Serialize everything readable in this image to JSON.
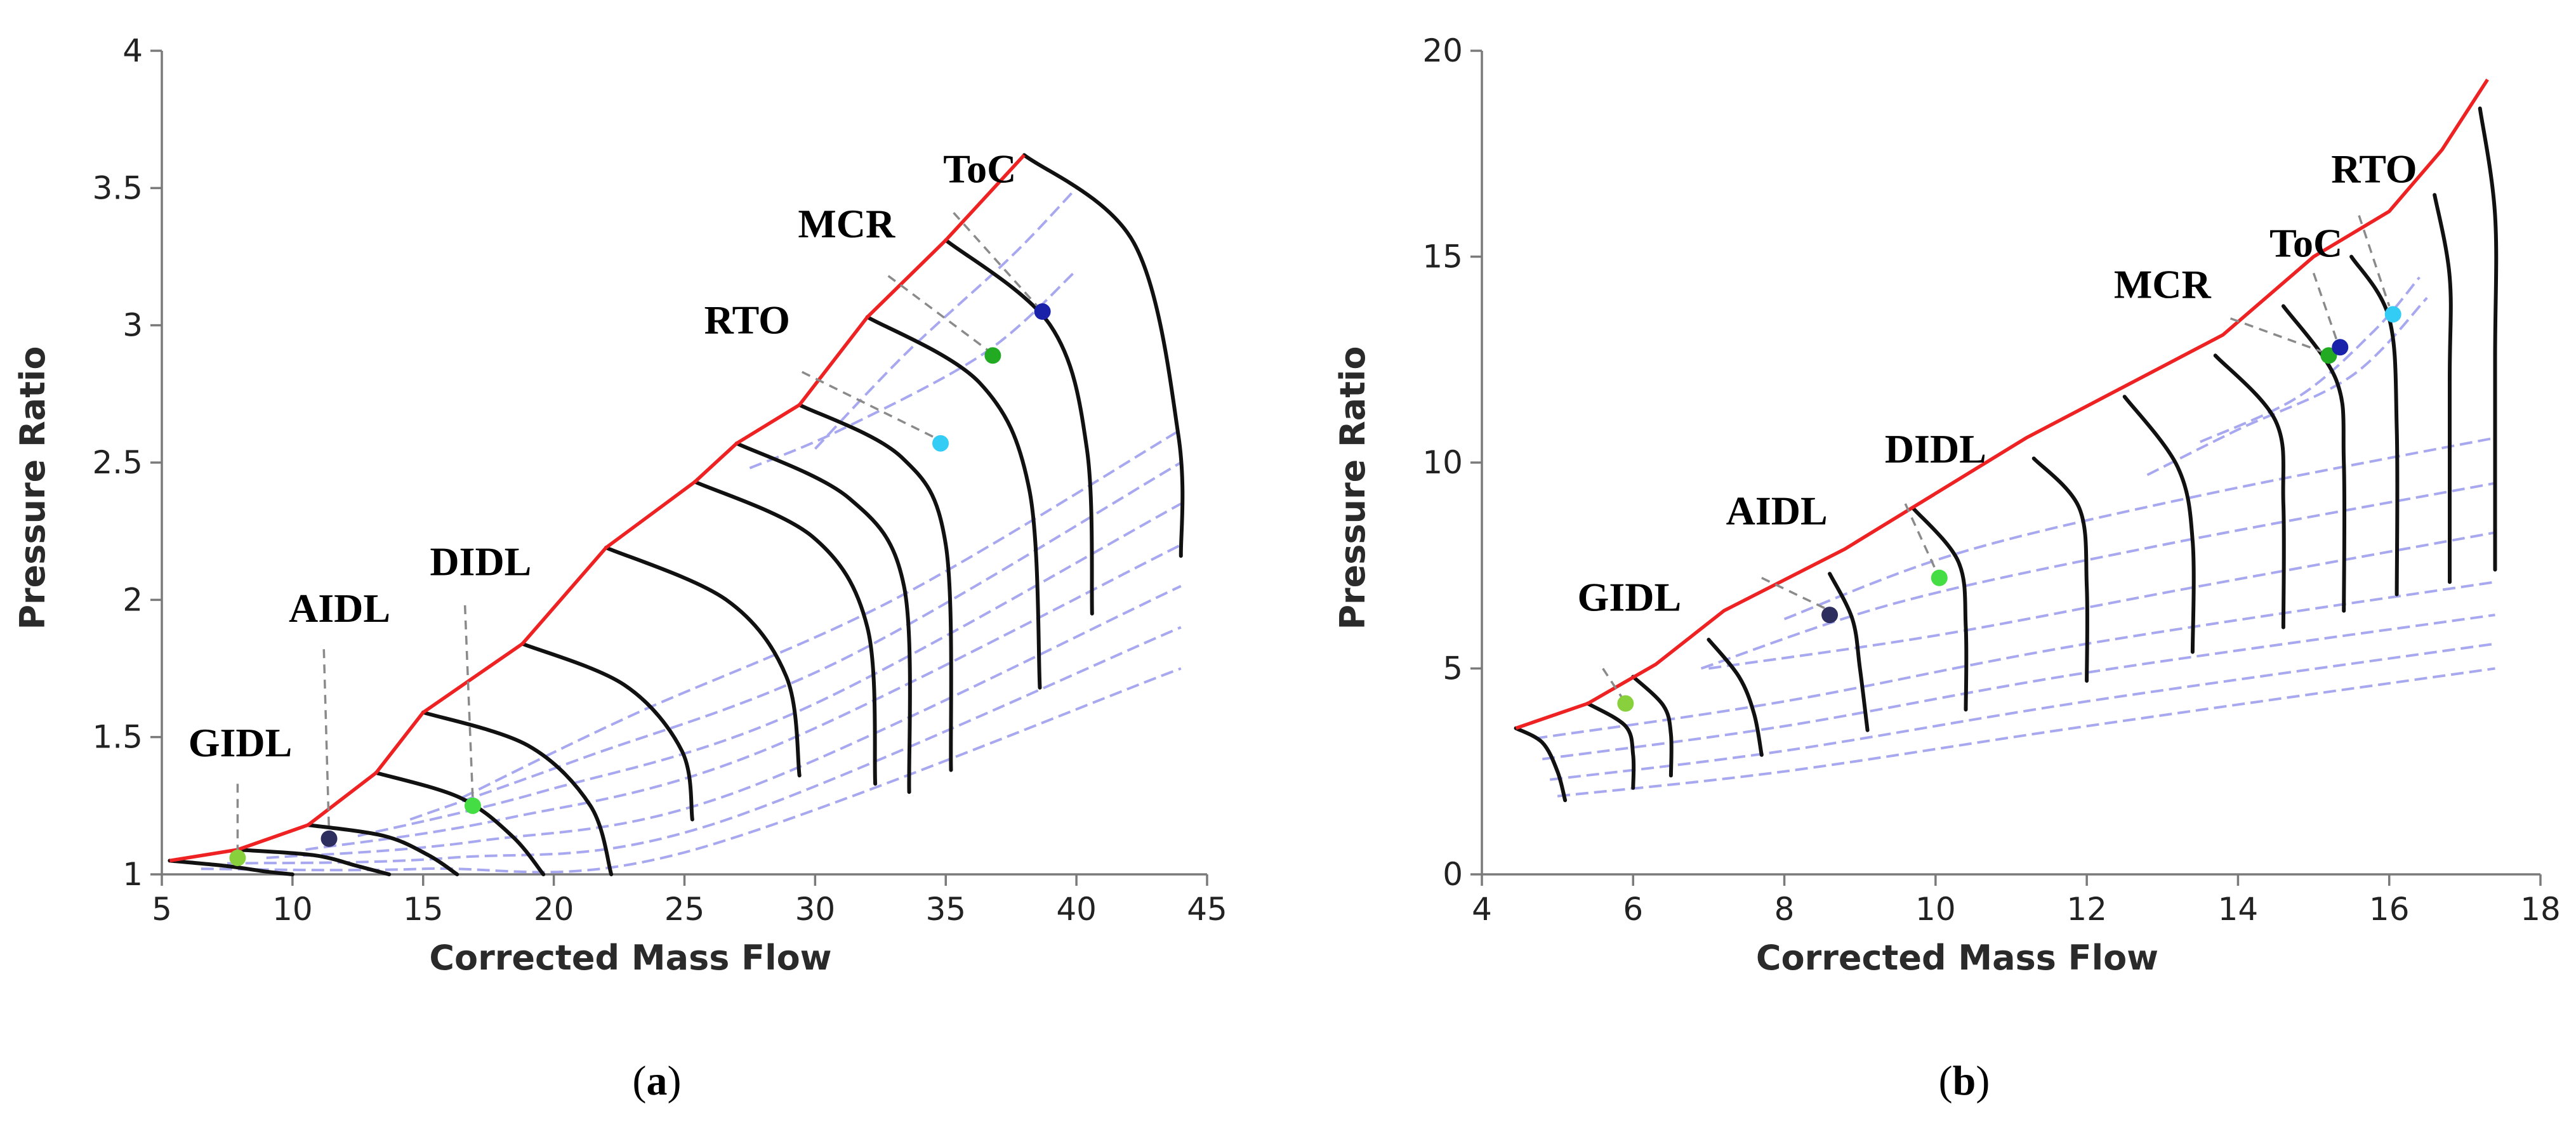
{
  "chart_data": [
    {
      "type": "line",
      "panel": "a",
      "caption_letter": "a",
      "xlabel": "Corrected Mass Flow",
      "ylabel": "Pressure Ratio",
      "xlim": [
        5,
        45
      ],
      "ylim": [
        1,
        4
      ],
      "xticks": [
        "5",
        "10",
        "15",
        "20",
        "25",
        "30",
        "35",
        "40",
        "45"
      ],
      "yticks": [
        "1",
        "1.5",
        "2",
        "2.5",
        "3",
        "3.5",
        "4"
      ],
      "surge_line": [
        [
          5.3,
          1.05
        ],
        [
          7.9,
          1.09
        ],
        [
          10.6,
          1.18
        ],
        [
          13.2,
          1.37
        ],
        [
          15.0,
          1.59
        ],
        [
          18.8,
          1.84
        ],
        [
          22.0,
          2.19
        ],
        [
          25.4,
          2.43
        ],
        [
          27.0,
          2.57
        ],
        [
          29.4,
          2.71
        ],
        [
          32.0,
          3.03
        ],
        [
          35.0,
          3.31
        ],
        [
          38.0,
          3.62
        ]
      ],
      "speed_lines": [
        [
          [
            5.3,
            1.05
          ],
          [
            7.5,
            1.03
          ],
          [
            9.0,
            1.01
          ],
          [
            10.0,
            1.0
          ]
        ],
        [
          [
            7.9,
            1.09
          ],
          [
            10.8,
            1.07
          ],
          [
            12.5,
            1.03
          ],
          [
            13.7,
            1.0
          ]
        ],
        [
          [
            10.6,
            1.18
          ],
          [
            13.5,
            1.14
          ],
          [
            15.2,
            1.07
          ],
          [
            16.3,
            1.0
          ]
        ],
        [
          [
            13.2,
            1.37
          ],
          [
            16.4,
            1.28
          ],
          [
            18.4,
            1.14
          ],
          [
            19.6,
            1.0
          ]
        ],
        [
          [
            15.0,
            1.59
          ],
          [
            19.0,
            1.47
          ],
          [
            21.4,
            1.25
          ],
          [
            22.2,
            1.0
          ]
        ],
        [
          [
            18.8,
            1.84
          ],
          [
            22.7,
            1.69
          ],
          [
            24.9,
            1.45
          ],
          [
            25.3,
            1.2
          ]
        ],
        [
          [
            22.0,
            2.19
          ],
          [
            26.6,
            2.0
          ],
          [
            28.9,
            1.72
          ],
          [
            29.4,
            1.36
          ]
        ],
        [
          [
            25.4,
            2.43
          ],
          [
            29.9,
            2.23
          ],
          [
            32.0,
            1.9
          ],
          [
            32.3,
            1.33
          ]
        ],
        [
          [
            27.0,
            2.57
          ],
          [
            31.3,
            2.37
          ],
          [
            33.4,
            2.05
          ],
          [
            33.6,
            1.3
          ]
        ],
        [
          [
            29.4,
            2.71
          ],
          [
            33.3,
            2.52
          ],
          [
            35.0,
            2.2
          ],
          [
            35.2,
            1.38
          ]
        ],
        [
          [
            32.0,
            3.03
          ],
          [
            36.3,
            2.79
          ],
          [
            38.2,
            2.4
          ],
          [
            38.6,
            1.68
          ]
        ],
        [
          [
            35.0,
            3.31
          ],
          [
            39.0,
            3.0
          ],
          [
            40.4,
            2.55
          ],
          [
            40.6,
            1.95
          ]
        ],
        [
          [
            38.0,
            3.62
          ],
          [
            42.2,
            3.3
          ],
          [
            43.9,
            2.6
          ],
          [
            44.0,
            2.16
          ]
        ]
      ],
      "efficiency_contours": [
        [
          [
            6.5,
            1.02
          ],
          [
            15.0,
            1.02
          ],
          [
            25.0,
            1.08
          ],
          [
            44.0,
            1.75
          ]
        ],
        [
          [
            7.5,
            1.04
          ],
          [
            16.0,
            1.06
          ],
          [
            26.0,
            1.18
          ],
          [
            44.0,
            1.9
          ]
        ],
        [
          [
            9.0,
            1.06
          ],
          [
            17.0,
            1.12
          ],
          [
            27.0,
            1.3
          ],
          [
            44.0,
            2.05
          ]
        ],
        [
          [
            10.5,
            1.09
          ],
          [
            18.0,
            1.2
          ],
          [
            28.0,
            1.45
          ],
          [
            44.0,
            2.2
          ]
        ],
        [
          [
            12.5,
            1.14
          ],
          [
            19.5,
            1.3
          ],
          [
            29.5,
            1.6
          ],
          [
            44.0,
            2.35
          ]
        ],
        [
          [
            14.5,
            1.2
          ],
          [
            21.0,
            1.42
          ],
          [
            31.0,
            1.78
          ],
          [
            44.0,
            2.5
          ]
        ],
        [
          [
            16.5,
            1.28
          ],
          [
            23.0,
            1.58
          ],
          [
            33.0,
            2.0
          ],
          [
            44.0,
            2.62
          ]
        ],
        [
          [
            27.5,
            2.48
          ],
          [
            31.0,
            2.62
          ],
          [
            36.5,
            2.9
          ],
          [
            40.0,
            3.2
          ]
        ],
        [
          [
            30.0,
            2.55
          ],
          [
            33.5,
            2.9
          ],
          [
            37.5,
            3.25
          ],
          [
            40.0,
            3.5
          ]
        ]
      ],
      "operating_points": [
        {
          "label": "GIDL",
          "x": 7.9,
          "y": 1.06,
          "color": "#88d03c"
        },
        {
          "label": "AIDL",
          "x": 11.4,
          "y": 1.13,
          "color": "#2e2e5e"
        },
        {
          "label": "DIDL",
          "x": 16.9,
          "y": 1.25,
          "color": "#44dd44"
        },
        {
          "label": "RTO",
          "x": 34.8,
          "y": 2.57,
          "color": "#33ccf5"
        },
        {
          "label": "MCR",
          "x": 36.8,
          "y": 2.89,
          "color": "#22aa22"
        },
        {
          "label": "ToC",
          "x": 38.7,
          "y": 3.05,
          "color": "#1a22aa"
        }
      ],
      "annotations": [
        {
          "text": "GIDL",
          "label_x": 8.0,
          "label_y": 1.43,
          "leader": [
            [
              7.9,
              1.33
            ],
            [
              7.9,
              1.08
            ]
          ]
        },
        {
          "text": "AIDL",
          "label_x": 11.8,
          "label_y": 1.92,
          "leader": [
            [
              11.2,
              1.82
            ],
            [
              11.4,
              1.15
            ]
          ]
        },
        {
          "text": "DIDL",
          "label_x": 17.2,
          "label_y": 2.09,
          "leader": [
            [
              16.6,
              1.98
            ],
            [
              16.9,
              1.27
            ]
          ]
        },
        {
          "text": "RTO",
          "label_x": 27.4,
          "label_y": 2.97,
          "leader": [
            [
              29.5,
              2.83
            ],
            [
              34.6,
              2.59
            ]
          ]
        },
        {
          "text": "MCR",
          "label_x": 31.2,
          "label_y": 3.32,
          "leader": [
            [
              32.8,
              3.18
            ],
            [
              36.6,
              2.91
            ]
          ]
        },
        {
          "text": "ToC",
          "label_x": 36.3,
          "label_y": 3.52,
          "leader": [
            [
              35.3,
              3.41
            ],
            [
              38.5,
              3.07
            ]
          ]
        }
      ]
    },
    {
      "type": "line",
      "panel": "b",
      "caption_letter": "b",
      "xlabel": "Corrected Mass Flow",
      "ylabel": "Pressure Ratio",
      "xlim": [
        4,
        18
      ],
      "ylim": [
        0,
        20
      ],
      "xticks": [
        "4",
        "6",
        "8",
        "10",
        "12",
        "14",
        "16",
        "18"
      ],
      "yticks": [
        "0",
        "5",
        "10",
        "15",
        "20"
      ],
      "surge_line": [
        [
          4.45,
          3.55
        ],
        [
          5.4,
          4.15
        ],
        [
          6.3,
          5.1
        ],
        [
          7.2,
          6.4
        ],
        [
          8.8,
          7.9
        ],
        [
          11.2,
          10.6
        ],
        [
          13.8,
          13.1
        ],
        [
          15.0,
          15.0
        ],
        [
          16.0,
          16.1
        ],
        [
          16.7,
          17.6
        ],
        [
          17.3,
          19.3
        ]
      ],
      "speed_lines": [
        [
          [
            4.45,
            3.55
          ],
          [
            4.8,
            3.2
          ],
          [
            5.0,
            2.5
          ],
          [
            5.1,
            1.8
          ]
        ],
        [
          [
            5.4,
            4.15
          ],
          [
            5.9,
            3.6
          ],
          [
            6.0,
            2.9
          ],
          [
            6.0,
            2.1
          ]
        ],
        [
          [
            6.0,
            4.8
          ],
          [
            6.4,
            4.1
          ],
          [
            6.5,
            3.4
          ],
          [
            6.5,
            2.4
          ]
        ],
        [
          [
            7.0,
            5.7
          ],
          [
            7.4,
            4.8
          ],
          [
            7.6,
            3.9
          ],
          [
            7.7,
            2.9
          ]
        ],
        [
          [
            8.6,
            7.3
          ],
          [
            8.9,
            6.2
          ],
          [
            9.0,
            5.0
          ],
          [
            9.1,
            3.5
          ]
        ],
        [
          [
            9.7,
            8.9
          ],
          [
            10.3,
            7.6
          ],
          [
            10.4,
            6.0
          ],
          [
            10.4,
            4.0
          ]
        ],
        [
          [
            11.3,
            10.1
          ],
          [
            11.9,
            8.9
          ],
          [
            12.0,
            7.0
          ],
          [
            12.0,
            4.7
          ]
        ],
        [
          [
            12.5,
            11.6
          ],
          [
            13.2,
            9.9
          ],
          [
            13.4,
            8.1
          ],
          [
            13.4,
            5.4
          ]
        ],
        [
          [
            13.7,
            12.6
          ],
          [
            14.5,
            11.0
          ],
          [
            14.6,
            9.0
          ],
          [
            14.6,
            6.0
          ]
        ],
        [
          [
            14.6,
            13.8
          ],
          [
            15.3,
            12.0
          ],
          [
            15.4,
            10.0
          ],
          [
            15.4,
            6.4
          ]
        ],
        [
          [
            15.5,
            15.0
          ],
          [
            16.0,
            13.5
          ],
          [
            16.1,
            10.8
          ],
          [
            16.1,
            6.8
          ]
        ],
        [
          [
            16.6,
            16.5
          ],
          [
            16.8,
            14.5
          ],
          [
            16.8,
            12.0
          ],
          [
            16.8,
            7.1
          ]
        ],
        [
          [
            17.2,
            18.6
          ],
          [
            17.4,
            16.0
          ],
          [
            17.4,
            12.5
          ],
          [
            17.4,
            7.4
          ]
        ]
      ],
      "efficiency_contours": [
        [
          [
            5.0,
            1.9
          ],
          [
            8.0,
            2.5
          ],
          [
            12.0,
            3.6
          ],
          [
            17.4,
            5.0
          ]
        ],
        [
          [
            4.9,
            2.3
          ],
          [
            8.0,
            3.0
          ],
          [
            12.0,
            4.2
          ],
          [
            17.4,
            5.6
          ]
        ],
        [
          [
            4.8,
            2.8
          ],
          [
            8.0,
            3.6
          ],
          [
            12.0,
            4.9
          ],
          [
            17.4,
            6.3
          ]
        ],
        [
          [
            4.7,
            3.3
          ],
          [
            8.0,
            4.2
          ],
          [
            12.0,
            5.6
          ],
          [
            17.4,
            7.1
          ]
        ],
        [
          [
            7.0,
            5.0
          ],
          [
            10.0,
            5.8
          ],
          [
            13.5,
            7.0
          ],
          [
            17.4,
            8.3
          ]
        ],
        [
          [
            6.9,
            5.0
          ],
          [
            9.5,
            6.6
          ],
          [
            13.0,
            8.0
          ],
          [
            17.4,
            9.5
          ]
        ],
        [
          [
            8.0,
            6.2
          ],
          [
            10.3,
            7.8
          ],
          [
            13.5,
            9.2
          ],
          [
            17.4,
            10.6
          ]
        ],
        [
          [
            12.8,
            9.7
          ],
          [
            14.0,
            10.8
          ],
          [
            15.5,
            12.1
          ],
          [
            16.5,
            14.0
          ]
        ],
        [
          [
            13.5,
            10.5
          ],
          [
            14.8,
            11.6
          ],
          [
            15.8,
            13.2
          ],
          [
            16.4,
            14.5
          ]
        ]
      ],
      "operating_points": [
        {
          "label": "GIDL",
          "x": 5.9,
          "y": 4.15,
          "color": "#88d03c"
        },
        {
          "label": "AIDL",
          "x": 8.6,
          "y": 6.3,
          "color": "#2e2e5e"
        },
        {
          "label": "DIDL",
          "x": 10.05,
          "y": 7.2,
          "color": "#44dd44"
        },
        {
          "label": "MCR",
          "x": 15.2,
          "y": 12.6,
          "color": "#22aa22"
        },
        {
          "label": "ToC",
          "x": 15.35,
          "y": 12.8,
          "color": "#1a22aa"
        },
        {
          "label": "RTO",
          "x": 16.05,
          "y": 13.6,
          "color": "#33ccf5"
        }
      ],
      "annotations": [
        {
          "text": "GIDL",
          "label_x": 5.95,
          "label_y": 6.4,
          "leader": [
            [
              5.6,
              5.0
            ],
            [
              5.85,
              4.3
            ]
          ]
        },
        {
          "text": "AIDL",
          "label_x": 7.9,
          "label_y": 8.5,
          "leader": [
            [
              7.7,
              7.2
            ],
            [
              8.55,
              6.45
            ]
          ]
        },
        {
          "text": "DIDL",
          "label_x": 10.0,
          "label_y": 10.0,
          "leader": [
            [
              9.6,
              9.0
            ],
            [
              10.0,
              7.4
            ]
          ]
        },
        {
          "text": "MCR",
          "label_x": 13.0,
          "label_y": 14.0,
          "leader": [
            [
              13.9,
              13.5
            ],
            [
              15.1,
              12.7
            ]
          ]
        },
        {
          "text": "ToC",
          "label_x": 14.9,
          "label_y": 15.0,
          "leader": [
            [
              15.0,
              14.6
            ],
            [
              15.3,
              13.0
            ]
          ]
        },
        {
          "text": "RTO",
          "label_x": 15.8,
          "label_y": 16.8,
          "leader": [
            [
              15.6,
              16.0
            ],
            [
              16.0,
              13.8
            ]
          ]
        }
      ]
    }
  ]
}
